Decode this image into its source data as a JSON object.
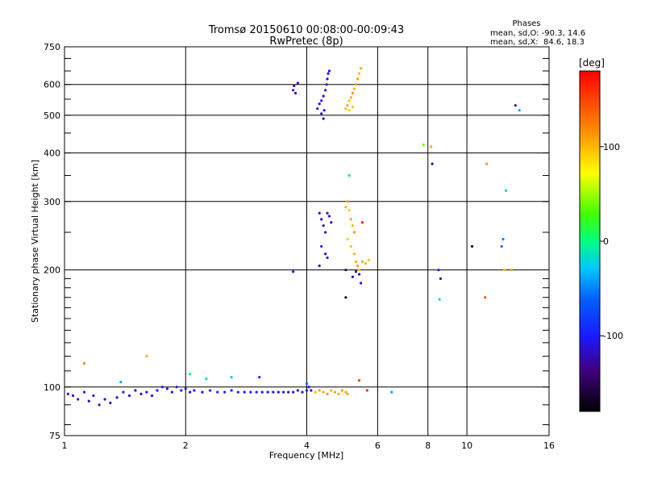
{
  "chart_data": {
    "type": "scatter",
    "title": "Tromsø 20150610 00:08:00-00:09:43",
    "subtitle": "RwPretec (8p)",
    "phases_box": {
      "title": "Phases",
      "line_o": "mean, sd,O: -90.3, 14.6",
      "line_x": "mean, sd,X:  84.6, 18.3"
    },
    "xlabel": "Frequency [MHz]",
    "ylabel": "Stationary phase Virtual Height [km]",
    "x_scale": "log",
    "y_scale": "log",
    "xlim": [
      1,
      16
    ],
    "ylim": [
      75,
      750
    ],
    "x_ticks": [
      1,
      2,
      4,
      6,
      8,
      10,
      16
    ],
    "x_tick_labels": [
      "1",
      "2",
      "4",
      "6",
      "8",
      "10",
      "16"
    ],
    "y_ticks": [
      75,
      100,
      200,
      300,
      400,
      500,
      600,
      750
    ],
    "y_tick_labels": [
      "75",
      "100",
      "200",
      "300",
      "400",
      "500",
      "600",
      "750"
    ],
    "grid": true,
    "colorbar": {
      "label": "[deg]",
      "min": -180,
      "max": 180,
      "ticks": [
        100,
        0,
        -100
      ],
      "tick_labels": [
        "100",
        "0",
        "-100"
      ]
    },
    "series": [
      {
        "points": [
          [
            1.02,
            96,
            -115
          ],
          [
            1.05,
            95,
            -120
          ],
          [
            1.08,
            93,
            -110
          ],
          [
            1.12,
            97,
            -105
          ],
          [
            1.15,
            92,
            -118
          ],
          [
            1.18,
            95,
            -112
          ],
          [
            1.22,
            90,
            -120
          ],
          [
            1.26,
            93,
            -108
          ],
          [
            1.3,
            91,
            -115
          ],
          [
            1.35,
            94,
            -110
          ],
          [
            1.4,
            97,
            -100
          ],
          [
            1.45,
            95,
            -115
          ],
          [
            1.5,
            98,
            -112
          ],
          [
            1.55,
            96,
            -118
          ],
          [
            1.6,
            97,
            -108
          ],
          [
            1.65,
            95,
            -110
          ],
          [
            1.7,
            98,
            -105
          ],
          [
            1.75,
            100,
            -100
          ],
          [
            1.8,
            99,
            -102
          ],
          [
            1.85,
            97,
            -108
          ],
          [
            1.9,
            100,
            -98
          ],
          [
            1.95,
            98,
            -104
          ],
          [
            2.0,
            99,
            -100
          ],
          [
            2.05,
            97,
            -106
          ],
          [
            2.1,
            98,
            -98
          ],
          [
            2.2,
            97,
            -102
          ],
          [
            2.3,
            98,
            -96
          ],
          [
            2.4,
            97,
            -100
          ],
          [
            2.5,
            97,
            -94
          ],
          [
            2.6,
            98,
            -98
          ],
          [
            2.7,
            97,
            -96
          ],
          [
            2.8,
            97,
            -100
          ],
          [
            2.9,
            97,
            -98
          ],
          [
            3.0,
            97,
            -100
          ],
          [
            3.1,
            97,
            -102
          ],
          [
            3.2,
            97,
            -104
          ],
          [
            3.3,
            97,
            -106
          ],
          [
            3.4,
            97,
            -108
          ],
          [
            3.5,
            97,
            -110
          ],
          [
            3.6,
            97,
            -112
          ],
          [
            3.7,
            97,
            -110
          ],
          [
            3.8,
            98,
            -108
          ],
          [
            3.9,
            97,
            -112
          ],
          [
            4.0,
            98,
            -110
          ],
          [
            4.05,
            100,
            -100
          ],
          [
            4.1,
            98,
            -115
          ],
          [
            1.12,
            115,
            120
          ],
          [
            1.6,
            120,
            105
          ],
          [
            1.38,
            103,
            -40
          ],
          [
            2.05,
            108,
            -10
          ],
          [
            2.25,
            105,
            -20
          ],
          [
            2.6,
            106,
            -30
          ],
          [
            3.05,
            106,
            -95
          ],
          [
            4.0,
            102,
            -60
          ],
          [
            6.5,
            97,
            -40
          ],
          [
            4.2,
            97,
            100
          ],
          [
            4.3,
            98,
            110
          ],
          [
            4.4,
            97,
            105
          ],
          [
            4.5,
            96,
            115
          ],
          [
            4.6,
            98,
            100
          ],
          [
            4.7,
            97,
            110
          ],
          [
            4.8,
            96,
            105
          ],
          [
            4.9,
            98,
            112
          ],
          [
            5.0,
            97,
            103
          ],
          [
            5.05,
            96,
            108
          ],
          [
            5.4,
            104,
            150
          ],
          [
            5.65,
            98,
            160
          ],
          [
            3.7,
            580,
            -110
          ],
          [
            3.72,
            595,
            -120
          ],
          [
            3.75,
            570,
            -115
          ],
          [
            3.8,
            605,
            -105
          ],
          [
            4.25,
            520,
            -110
          ],
          [
            4.3,
            535,
            -115
          ],
          [
            4.35,
            545,
            -105
          ],
          [
            4.4,
            560,
            -120
          ],
          [
            4.45,
            580,
            -110
          ],
          [
            4.48,
            600,
            -100
          ],
          [
            4.5,
            620,
            -115
          ],
          [
            4.52,
            640,
            -108
          ],
          [
            4.55,
            650,
            -112
          ],
          [
            4.4,
            490,
            -118
          ],
          [
            4.35,
            505,
            -110
          ],
          [
            4.42,
            515,
            -106
          ],
          [
            5.0,
            520,
            100
          ],
          [
            5.05,
            530,
            110
          ],
          [
            5.1,
            545,
            95
          ],
          [
            5.15,
            555,
            105
          ],
          [
            5.2,
            570,
            115
          ],
          [
            5.25,
            585,
            100
          ],
          [
            5.3,
            600,
            108
          ],
          [
            5.35,
            620,
            112
          ],
          [
            5.4,
            640,
            98
          ],
          [
            5.45,
            660,
            104
          ],
          [
            5.1,
            515,
            90
          ],
          [
            5.2,
            525,
            95
          ],
          [
            4.3,
            280,
            -110
          ],
          [
            4.35,
            270,
            -115
          ],
          [
            4.4,
            260,
            -120
          ],
          [
            4.45,
            250,
            -105
          ],
          [
            4.5,
            280,
            -110
          ],
          [
            4.55,
            275,
            -112
          ],
          [
            4.6,
            265,
            -118
          ],
          [
            4.35,
            230,
            -100
          ],
          [
            4.45,
            220,
            -108
          ],
          [
            4.5,
            215,
            -110
          ],
          [
            5.0,
            290,
            100
          ],
          [
            5.05,
            300,
            110
          ],
          [
            5.1,
            285,
            95
          ],
          [
            5.15,
            270,
            105
          ],
          [
            5.2,
            260,
            100
          ],
          [
            5.25,
            250,
            112
          ],
          [
            5.05,
            240,
            90
          ],
          [
            5.15,
            230,
            95
          ],
          [
            5.25,
            220,
            100
          ],
          [
            5.3,
            210,
            105
          ],
          [
            5.35,
            205,
            110
          ],
          [
            5.4,
            200,
            98
          ],
          [
            5.5,
            210,
            105
          ],
          [
            5.6,
            208,
            100
          ],
          [
            5.7,
            212,
            95
          ],
          [
            5.1,
            350,
            -20
          ],
          [
            5.5,
            265,
            170
          ],
          [
            5.0,
            200,
            -150
          ],
          [
            5.3,
            198,
            -140
          ],
          [
            5.4,
            195,
            -130
          ],
          [
            5.2,
            192,
            -120
          ],
          [
            5.0,
            170,
            -160
          ],
          [
            5.45,
            185,
            -110
          ],
          [
            3.7,
            198,
            -100
          ],
          [
            4.3,
            205,
            -120
          ],
          [
            7.8,
            420,
            40
          ],
          [
            8.15,
            415,
            110
          ],
          [
            8.2,
            375,
            -130
          ],
          [
            8.5,
            200,
            -100
          ],
          [
            8.6,
            190,
            -140
          ],
          [
            8.55,
            168,
            -20
          ],
          [
            10.3,
            230,
            -170
          ],
          [
            11.2,
            375,
            110
          ],
          [
            12.5,
            320,
            -30
          ],
          [
            12.3,
            240,
            -50
          ],
          [
            12.2,
            230,
            -60
          ],
          [
            12.4,
            200,
            100
          ],
          [
            12.9,
            200,
            110
          ],
          [
            11.1,
            170,
            140
          ],
          [
            13.2,
            530,
            -130
          ],
          [
            13.5,
            515,
            -40
          ]
        ]
      }
    ]
  }
}
